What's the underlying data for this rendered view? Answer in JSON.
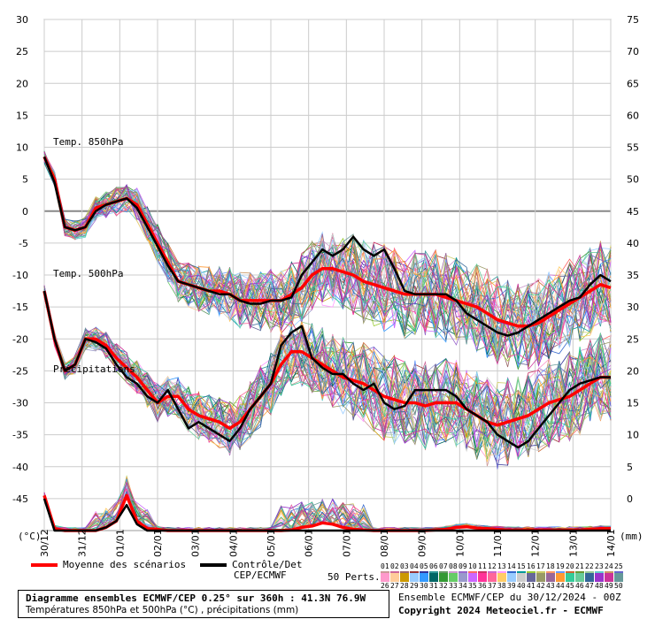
{
  "chart_data": {
    "type": "line",
    "title": "Diagramme ensembles ECMWF/CEP 0.25° sur 360h : 41.3N 76.9W",
    "subtitle": "Températures 850hPa et 500hPa (°C) , précipitations (mm)",
    "left_axis": {
      "unit": "(°C)",
      "min": -50,
      "max": 30,
      "ticks": [
        30,
        25,
        20,
        15,
        10,
        5,
        0,
        -5,
        -10,
        -15,
        -20,
        -25,
        -30,
        -35,
        -40,
        -45
      ]
    },
    "right_axis": {
      "unit": "(mm)",
      "min": -5,
      "max": 75,
      "ticks": [
        75,
        70,
        65,
        60,
        55,
        50,
        45,
        40,
        35,
        30,
        25,
        20,
        15,
        10,
        5,
        0
      ]
    },
    "x_labels": [
      "30/12",
      "31/12",
      "01/01",
      "02/01",
      "03/01",
      "04/01",
      "05/01",
      "06/01",
      "07/01",
      "08/01",
      "09/01",
      "10/01",
      "11/01",
      "12/01",
      "13/01",
      "14/01"
    ],
    "annotations": [
      "Temp. 850hPa",
      "Temp. 500hPa",
      "Précipitations"
    ],
    "x_step_hours": 6,
    "series": [
      {
        "name": "Moyenne des scénarios",
        "group": "t850",
        "color": "#ff0000",
        "values": [
          8.5,
          5,
          -2.5,
          -3,
          -2.5,
          0.5,
          1,
          1.5,
          2,
          1,
          -2,
          -5,
          -8,
          -11,
          -11.5,
          -12,
          -12.5,
          -12.5,
          -13,
          -14,
          -14,
          -14,
          -14,
          -14,
          -13,
          -12,
          -10,
          -9,
          -9,
          -9.5,
          -10,
          -11,
          -11.5,
          -12,
          -12.5,
          -13,
          -13,
          -13,
          -13,
          -13.5,
          -14,
          -14.5,
          -15,
          -16,
          -17,
          -17.5,
          -18,
          -18,
          -17.5,
          -16.5,
          -15.5,
          -14.5,
          -13.5,
          -12.5,
          -11.5,
          -12
        ]
      },
      {
        "name": "Contrôle/Det CEP/ECMWF",
        "group": "t850",
        "color": "#000000",
        "values": [
          8.5,
          4.5,
          -2.5,
          -3,
          -2.5,
          0,
          1,
          1.5,
          2,
          0.5,
          -2.5,
          -5.5,
          -8.5,
          -11,
          -11.5,
          -12,
          -12.5,
          -13,
          -13,
          -14,
          -14.5,
          -14.5,
          -14,
          -14,
          -13.5,
          -10,
          -8,
          -6,
          -7,
          -6,
          -4,
          -6,
          -7,
          -6,
          -9,
          -12.5,
          -13,
          -13,
          -13,
          -13,
          -14,
          -16,
          -17,
          -18,
          -19,
          -19.5,
          -19,
          -18,
          -17,
          -16,
          -15,
          -14,
          -13.5,
          -11.5,
          -10,
          -11
        ]
      },
      {
        "name": "Moyenne des scénarios",
        "group": "t500",
        "color": "#ff0000",
        "values": [
          -12.5,
          -20,
          -25,
          -24,
          -20,
          -20,
          -21,
          -23,
          -24.5,
          -26,
          -28,
          -30,
          -29,
          -29,
          -31,
          -32,
          -32.5,
          -33,
          -34,
          -33,
          -31,
          -29,
          -27,
          -24,
          -22,
          -22,
          -23,
          -24,
          -25,
          -26,
          -26.5,
          -27,
          -28,
          -29,
          -29.5,
          -30,
          -30,
          -30.5,
          -30,
          -30,
          -30,
          -31,
          -32,
          -33,
          -33.5,
          -33,
          -32.5,
          -32,
          -31,
          -30,
          -29.5,
          -29,
          -28,
          -27,
          -26,
          -26
        ]
      },
      {
        "name": "Contrôle/Det CEP/ECMWF",
        "group": "t500",
        "color": "#000000",
        "values": [
          -12.5,
          -20,
          -25,
          -24,
          -20,
          -20.5,
          -21.5,
          -24,
          -26,
          -27,
          -29,
          -30,
          -28,
          -31,
          -34,
          -33,
          -34,
          -35,
          -36,
          -34,
          -31,
          -29,
          -27,
          -21,
          -19,
          -18,
          -23,
          -24.5,
          -25.5,
          -25.5,
          -27,
          -28,
          -27,
          -30,
          -31,
          -30.5,
          -28,
          -28,
          -28,
          -28,
          -29,
          -31,
          -32,
          -33,
          -35,
          -36,
          -37,
          -36,
          -34,
          -32,
          -30,
          -28,
          -27,
          -26.5,
          -26,
          -26
        ]
      },
      {
        "name": "Moyenne des scénarios",
        "group": "precip",
        "color": "#ff0000",
        "values": [
          5.5,
          0.3,
          0,
          0,
          0,
          0,
          0.5,
          1.5,
          5.5,
          1.5,
          0.3,
          0.2,
          0,
          0,
          0,
          0,
          0,
          0,
          0,
          0,
          0,
          0,
          0,
          0,
          0.1,
          0.5,
          0.7,
          1.2,
          1,
          0.5,
          0.2,
          0.1,
          0,
          0,
          0,
          0,
          0,
          0,
          0.1,
          0.2,
          0.5,
          0.6,
          0.4,
          0.3,
          0.2,
          0.1,
          0.1,
          0.1,
          0.1,
          0.1,
          0.1,
          0.1,
          0.1,
          0.2,
          0.3,
          0.3
        ]
      },
      {
        "name": "Contrôle/Det CEP/ECMWF",
        "group": "precip",
        "color": "#000000",
        "values": [
          5,
          0,
          0,
          0,
          0,
          0,
          0.5,
          1.5,
          4,
          1,
          0,
          0,
          0,
          0,
          0,
          0,
          0,
          0,
          0,
          0,
          0,
          0,
          0,
          0,
          0,
          0,
          0,
          0,
          0,
          0,
          0,
          0,
          0,
          0,
          0,
          0,
          0,
          0,
          0,
          0,
          0,
          0,
          0,
          0,
          0,
          0,
          0,
          0,
          0,
          0,
          0,
          0,
          0,
          0,
          0,
          0
        ]
      }
    ],
    "ensemble": {
      "count": 50,
      "description": "50 Perts."
    }
  },
  "legend": {
    "mean_label": "Moyenne des scénarios",
    "control_label": "Contrôle/Det",
    "control_label2": "CEP/ECMWF",
    "perts_label": "50 Perts.",
    "perts_top": [
      "01",
      "02",
      "03",
      "04",
      "05",
      "06",
      "07",
      "08",
      "09",
      "10",
      "11",
      "12",
      "13",
      "14",
      "15",
      "16",
      "17",
      "18",
      "19",
      "20",
      "21",
      "22",
      "23",
      "24",
      "25"
    ],
    "perts_bottom": [
      "26",
      "27",
      "28",
      "29",
      "30",
      "31",
      "32",
      "33",
      "34",
      "35",
      "36",
      "37",
      "38",
      "39",
      "40",
      "41",
      "42",
      "43",
      "44",
      "45",
      "46",
      "47",
      "48",
      "49",
      "50"
    ],
    "perts_colors": [
      "#cc9999",
      "#cc6699",
      "#996666",
      "#993333",
      "#333399",
      "#339999",
      "#669966",
      "#cc99cc",
      "#9966cc",
      "#ff6666",
      "#cc3366",
      "#cc66cc",
      "#ff99ff",
      "#3366cc",
      "#009999",
      "#99cc33",
      "#cccc66",
      "#ff9966",
      "#6699ff",
      "#cc6633",
      "#669933",
      "#99cc99",
      "#66cccc",
      "#cc9966",
      "#6666cc",
      "#ff99cc",
      "#ffcc99",
      "#cc9900",
      "#99ccff",
      "#3399ff",
      "#006666",
      "#339933",
      "#66cc66",
      "#9999cc",
      "#cc66ff",
      "#ff3399",
      "#ff6699",
      "#ffcc66",
      "#99ccff",
      "#cccccc",
      "#666699",
      "#999966",
      "#996699",
      "#ff9933",
      "#33cc99",
      "#66cc99",
      "#336699",
      "#9933cc",
      "#cc3399",
      "#669999"
    ]
  },
  "footer": {
    "title": "Diagramme ensembles ECMWF/CEP 0.25° sur 360h : 41.3N 76.9W",
    "subtitle": "Températures 850hPa et 500hPa (°C) , précipitations (mm)",
    "run": "Ensemble ECMWF/CEP du 30/12/2024 - 00Z",
    "copyright": "Copyright 2024 Meteociel.fr - ECMWF"
  }
}
